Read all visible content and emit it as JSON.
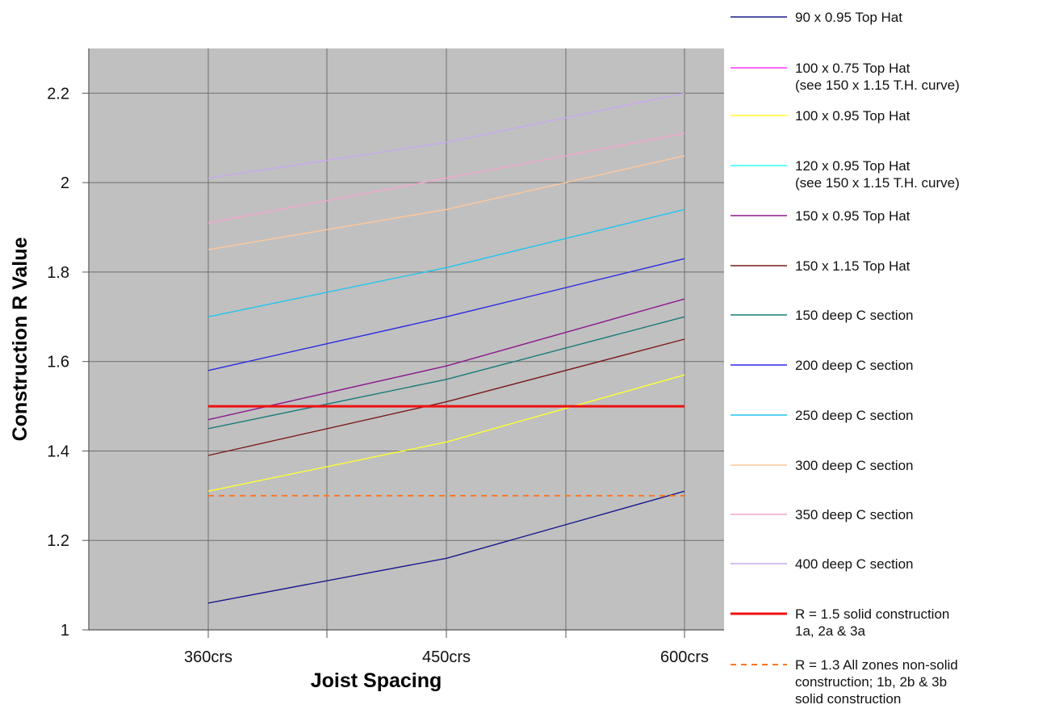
{
  "chart_data": {
    "type": "line",
    "categories": [
      "360crs",
      "450crs",
      "600crs"
    ],
    "xlabel": "Joist Spacing",
    "ylabel": "Construction R Value",
    "ylim": [
      1,
      2.3
    ],
    "yticks": [
      1,
      1.2,
      1.4,
      1.6,
      1.8,
      2,
      2.2
    ],
    "ytick_labels": [
      "1",
      "1.2",
      "1.4",
      "1.6",
      "1.8",
      "2",
      "2.2"
    ],
    "grid": true,
    "plot_background": "#c0c0c0",
    "legend_position": "right",
    "series": [
      {
        "name": "90 x 0.95 Top Hat",
        "color": "#1a1a8c",
        "values": [
          1.06,
          1.16,
          1.31
        ]
      },
      {
        "name": "100 x 0.75 Top Hat\n(see 150 x 1.15 T.H. curve)",
        "color": "#ff33ff",
        "values": [
          1.39,
          1.51,
          1.65
        ],
        "hidden_line": true
      },
      {
        "name": "100 x 0.95 Top Hat",
        "color": "#ffff33",
        "values": [
          1.31,
          1.42,
          1.57
        ]
      },
      {
        "name": "120 x 0.95 Top Hat\n(see 150 x 1.15 T.H. curve)",
        "color": "#33ffff",
        "values": [
          1.39,
          1.51,
          1.65
        ],
        "hidden_line": true
      },
      {
        "name": "150 x 0.95 Top Hat",
        "color": "#8b1a8b",
        "values": [
          1.47,
          1.59,
          1.74
        ]
      },
      {
        "name": "150 x 1.15 Top Hat",
        "color": "#7a1a1a",
        "values": [
          1.39,
          1.51,
          1.65
        ]
      },
      {
        "name": "150 deep C section",
        "color": "#1a7a7a",
        "values": [
          1.45,
          1.56,
          1.7
        ]
      },
      {
        "name": "200 deep C section",
        "color": "#2a2ae0",
        "values": [
          1.58,
          1.7,
          1.83
        ]
      },
      {
        "name": "250 deep C section",
        "color": "#22c4ee",
        "values": [
          1.7,
          1.81,
          1.94
        ]
      },
      {
        "name": "300 deep C section",
        "color": "#ffc89a",
        "values": [
          1.85,
          1.94,
          2.06
        ]
      },
      {
        "name": "350 deep C section",
        "color": "#f4a6d0",
        "values": [
          1.91,
          2.01,
          2.11
        ]
      },
      {
        "name": "400 deep C section",
        "color": "#c8a8f0",
        "values": [
          2.01,
          2.09,
          2.2
        ]
      },
      {
        "name": "R = 1.5 solid construction\n1a, 2a & 3a",
        "color": "#ee1111",
        "values": [
          1.5,
          1.5,
          1.5
        ],
        "width": 3
      },
      {
        "name": "R = 1.3 All zones non-solid\nconstruction; 1b, 2b & 3b\nsolid construction",
        "color": "#ff7722",
        "values": [
          1.3,
          1.3,
          1.3
        ],
        "dashed": true,
        "width": 2
      }
    ]
  }
}
